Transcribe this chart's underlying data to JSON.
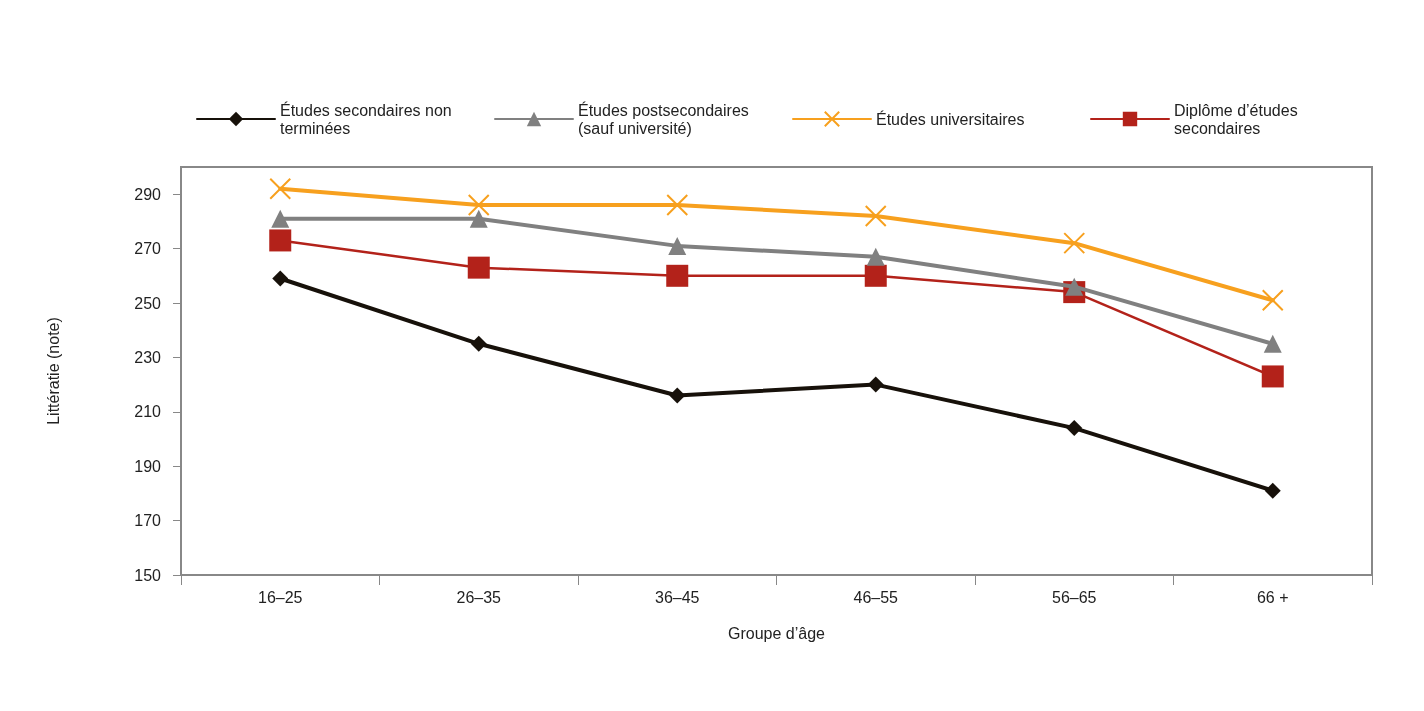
{
  "chart_data": {
    "type": "line",
    "xlabel": "Groupe d’âge",
    "ylabel": "Littératie (note)",
    "categories": [
      "16–25",
      "26–35",
      "36–45",
      "46–55",
      "56–65",
      "66 +"
    ],
    "series": [
      {
        "name": "Études secondaires non terminées",
        "color": "#17110a",
        "marker": "diamond",
        "values": [
          259,
          235,
          216,
          220,
          204,
          181
        ]
      },
      {
        "name": "Études postsecondaires (sauf université)",
        "color": "#808080",
        "marker": "triangle",
        "values": [
          281,
          281,
          271,
          267,
          256,
          235
        ]
      },
      {
        "name": "Études universitaires",
        "color": "#f7a01e",
        "marker": "cross",
        "values": [
          292,
          286,
          286,
          282,
          272,
          251
        ]
      },
      {
        "name": "Diplôme d’études secondaires",
        "color": "#b3221a",
        "marker": "square",
        "values": [
          273,
          263,
          260,
          260,
          254,
          223
        ]
      }
    ],
    "ylim": [
      150,
      300
    ],
    "yticks": [
      150,
      170,
      190,
      210,
      230,
      250,
      270,
      290
    ],
    "grid": false,
    "legend": "top",
    "line_style": "solid"
  }
}
